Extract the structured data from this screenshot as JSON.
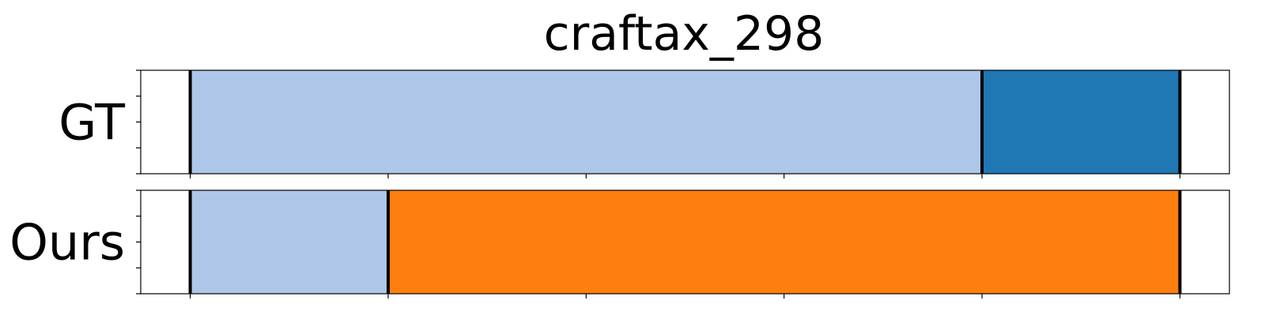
{
  "chart_data": {
    "type": "segment-timeline",
    "title": "craftax_298",
    "x_range": [
      0,
      1100
    ],
    "x_ticks": [
      50,
      250,
      450,
      650,
      850,
      1050
    ],
    "rows": [
      {
        "label": "GT",
        "segments": [
          {
            "start": 50,
            "end": 850,
            "color": "#aec7e8"
          },
          {
            "start": 850,
            "end": 1050,
            "color": "#1f77b4"
          }
        ],
        "boundaries": [
          50,
          850,
          1050
        ]
      },
      {
        "label": "Ours",
        "segments": [
          {
            "start": 50,
            "end": 250,
            "color": "#aec7e8"
          },
          {
            "start": 250,
            "end": 1050,
            "color": "#ff7f0e"
          }
        ],
        "boundaries": [
          50,
          250,
          1050
        ]
      }
    ]
  }
}
